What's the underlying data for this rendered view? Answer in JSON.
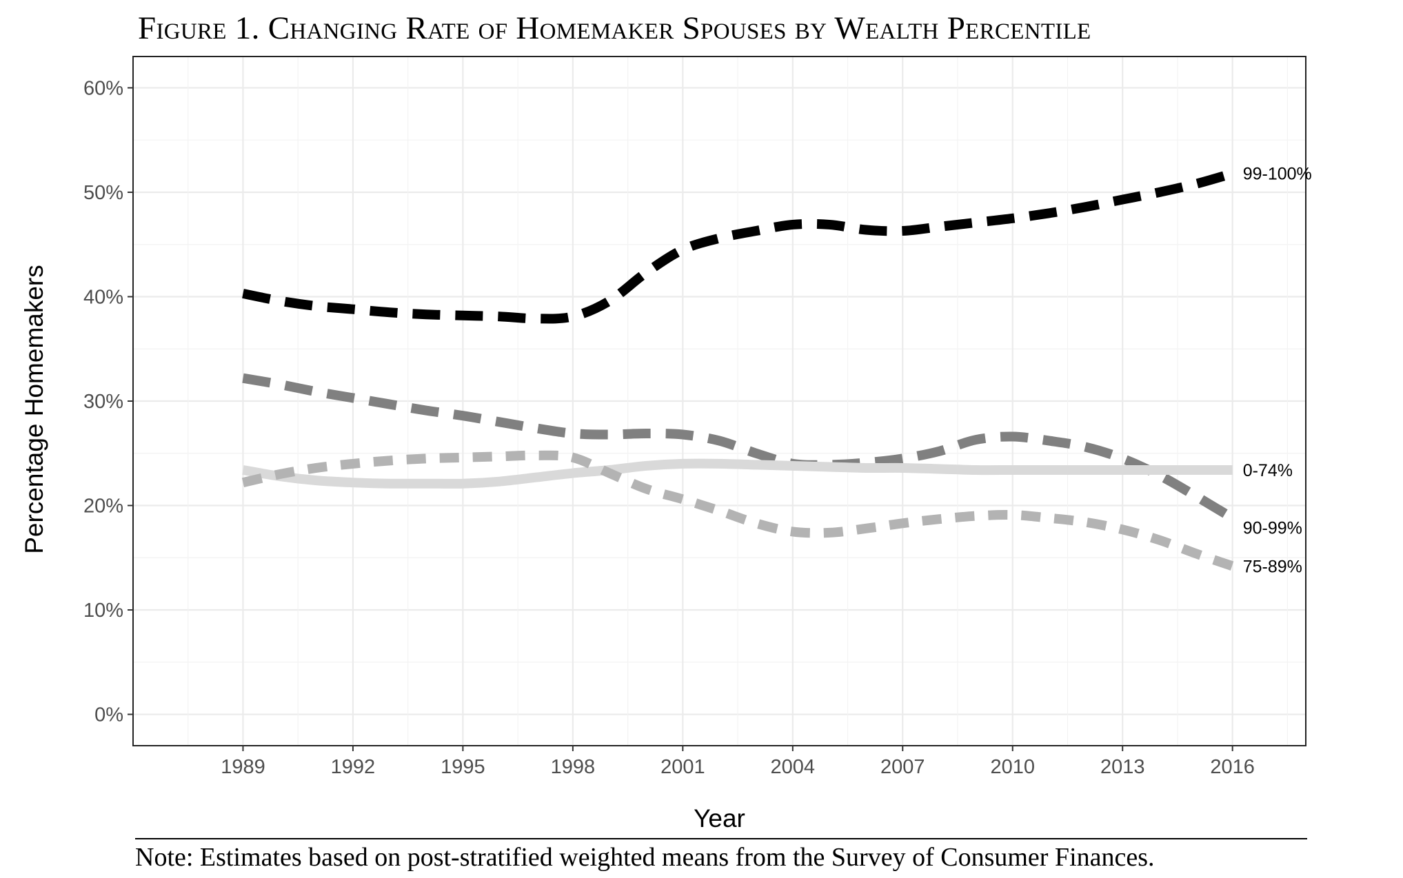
{
  "figure": {
    "title": "Figure 1. Changing Rate of Homemaker Spouses by Wealth Percentile",
    "note": "Note: Estimates based on post-stratified weighted means from the Survey of Consumer Finances."
  },
  "chart_data": {
    "type": "line",
    "xlabel": "Year",
    "ylabel": "Percentage Homemakers",
    "xlim": [
      1986,
      2018
    ],
    "ylim": [
      -3,
      63
    ],
    "x_ticks": [
      1989,
      1992,
      1995,
      1998,
      2001,
      2004,
      2007,
      2010,
      2013,
      2016
    ],
    "y_ticks": [
      0,
      10,
      20,
      30,
      40,
      50,
      60
    ],
    "y_tick_labels": [
      "0%",
      "10%",
      "20%",
      "30%",
      "40%",
      "50%",
      "60%"
    ],
    "grid": true,
    "legend": "direct labels at line ends (right)",
    "x": [
      1989,
      1990,
      1991,
      1992,
      1993,
      1994,
      1995,
      1996,
      1997,
      1998,
      1999,
      2000,
      2001,
      2002,
      2003,
      2004,
      2005,
      2006,
      2007,
      2008,
      2009,
      2010,
      2011,
      2012,
      2013,
      2014,
      2015,
      2016
    ],
    "series": [
      {
        "name": "99-100%",
        "values": [
          40.3,
          39.6,
          39.1,
          38.8,
          38.5,
          38.3,
          38.2,
          38.1,
          37.9,
          38.1,
          39.6,
          42.3,
          44.5,
          45.6,
          46.3,
          46.9,
          46.9,
          46.4,
          46.3,
          46.7,
          47.1,
          47.5,
          48.0,
          48.6,
          49.3,
          50.0,
          50.8,
          51.8
        ],
        "color": "#000000",
        "dash": "40 22",
        "width": 14
      },
      {
        "name": "90-99%",
        "values": [
          32.2,
          31.6,
          30.9,
          30.3,
          29.7,
          29.1,
          28.6,
          28.0,
          27.4,
          26.9,
          26.8,
          26.9,
          26.8,
          26.2,
          25.0,
          24.0,
          23.9,
          24.1,
          24.5,
          25.2,
          26.3,
          26.6,
          26.2,
          25.6,
          24.5,
          22.9,
          20.9,
          18.8
        ],
        "color": "#808080",
        "dash": "40 22",
        "width": 14
      },
      {
        "name": "0-74%",
        "values": [
          23.4,
          22.8,
          22.4,
          22.2,
          22.1,
          22.1,
          22.1,
          22.3,
          22.7,
          23.1,
          23.4,
          23.8,
          24.0,
          24.0,
          23.9,
          23.8,
          23.7,
          23.6,
          23.6,
          23.5,
          23.4,
          23.4,
          23.4,
          23.4,
          23.4,
          23.4,
          23.4,
          23.4
        ],
        "color": "#d9d9d9",
        "dash": "",
        "width": 14
      },
      {
        "name": "75-89%",
        "values": [
          22.2,
          23.0,
          23.6,
          24.0,
          24.3,
          24.5,
          24.6,
          24.7,
          24.8,
          24.6,
          23.1,
          21.6,
          20.6,
          19.5,
          18.3,
          17.5,
          17.4,
          17.8,
          18.3,
          18.7,
          19.0,
          19.1,
          18.8,
          18.4,
          17.7,
          16.7,
          15.4,
          14.2
        ],
        "color": "#b3b3b3",
        "dash": "28 20",
        "width": 14
      }
    ]
  }
}
